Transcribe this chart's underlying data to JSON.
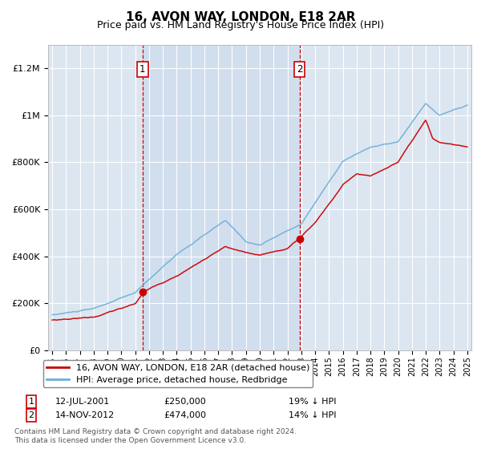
{
  "title": "16, AVON WAY, LONDON, E18 2AR",
  "subtitle": "Price paid vs. HM Land Registry's House Price Index (HPI)",
  "sale1_date": "12-JUL-2001",
  "sale1_price": 250000,
  "sale1_label": "19% ↓ HPI",
  "sale2_date": "14-NOV-2012",
  "sale2_price": 474000,
  "sale2_label": "14% ↓ HPI",
  "legend_red": "16, AVON WAY, LONDON, E18 2AR (detached house)",
  "legend_blue": "HPI: Average price, detached house, Redbridge",
  "footnote1": "Contains HM Land Registry data © Crown copyright and database right 2024.",
  "footnote2": "This data is licensed under the Open Government Licence v3.0.",
  "red_color": "#cc0000",
  "blue_color": "#6baed6",
  "bg_color": "#dce6f1",
  "bg_highlight": "#ccdff0",
  "grid_color": "#ffffff",
  "vline_color": "#cc0000",
  "annotation_box_color": "#cc0000",
  "ylim": [
    0,
    1300000
  ],
  "yticks": [
    0,
    200000,
    400000,
    600000,
    800000,
    1000000,
    1200000
  ],
  "ytick_labels": [
    "£0",
    "£200K",
    "£400K",
    "£600K",
    "£800K",
    "£1M",
    "£1.2M"
  ],
  "sale1_year": 2001.53,
  "sale2_year": 2012.87,
  "xmin": 1995,
  "xmax": 2025
}
